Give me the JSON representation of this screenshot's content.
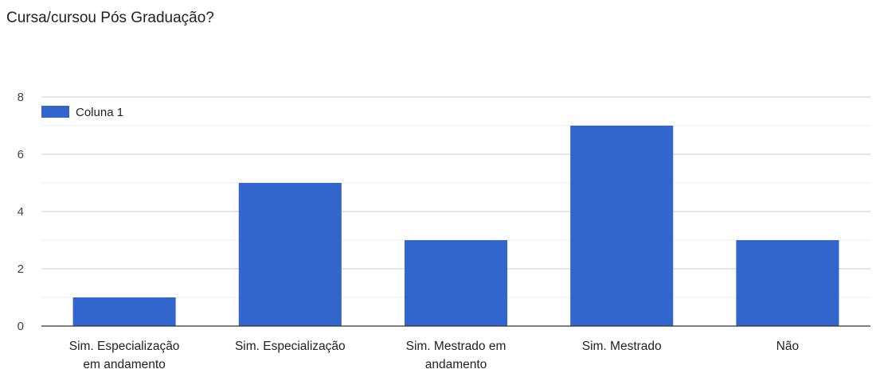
{
  "title": "Cursa/cursou Pós Graduação?",
  "colors": {
    "bar": "#3366cc",
    "grid": "#cccccc",
    "minor_grid": "#ebebeb",
    "axis": "#333333"
  },
  "chart_data": {
    "type": "bar",
    "title": "Cursa/cursou Pós Graduação?",
    "categories": [
      [
        "Sim. Especialização",
        "em andamento"
      ],
      [
        "Sim. Especialização"
      ],
      [
        "Sim. Mestrado em",
        "andamento"
      ],
      [
        "Sim. Mestrado"
      ],
      [
        "Não"
      ]
    ],
    "series": [
      {
        "name": "Coluna 1",
        "values": [
          1,
          5,
          3,
          7,
          3
        ]
      }
    ],
    "ylim": [
      0,
      8
    ],
    "yticks": [
      0,
      2,
      4,
      6,
      8
    ],
    "minor_ticks": [
      1,
      3,
      5,
      7
    ],
    "xlabel": "",
    "ylabel": "",
    "grid": true,
    "legend": "top-left"
  }
}
